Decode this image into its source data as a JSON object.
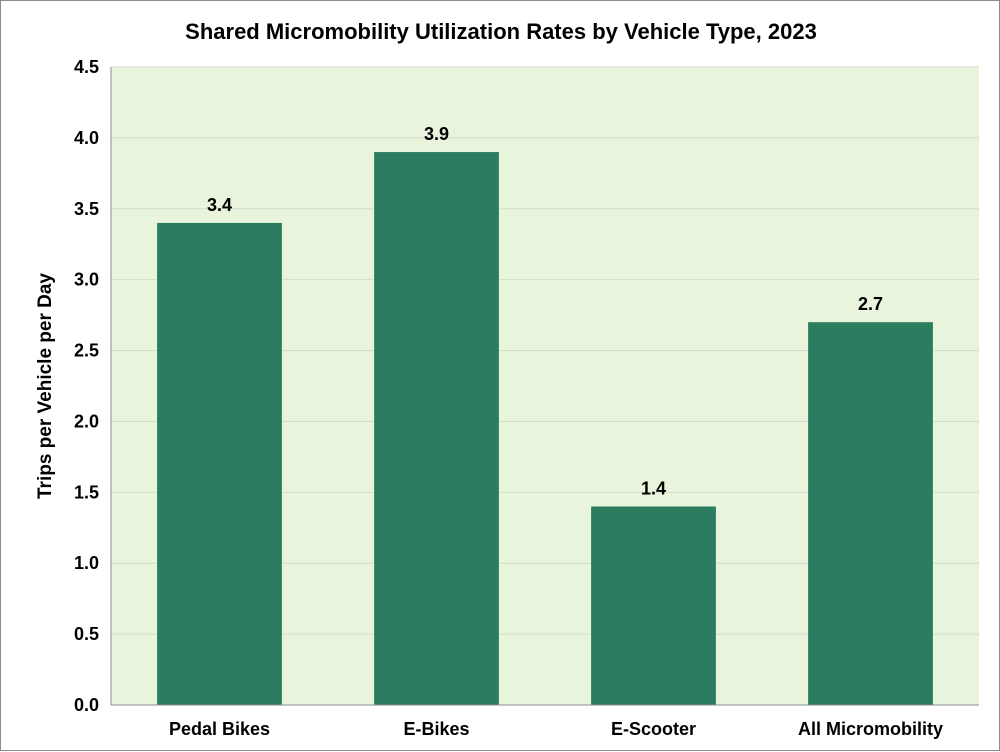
{
  "chart_data": {
    "type": "bar",
    "title": "Shared Micromobility Utilization Rates by Vehicle Type, 2023",
    "xlabel": "",
    "ylabel": "Trips per Vehicle per Day",
    "categories": [
      "Pedal Bikes",
      "E-Bikes",
      "E-Scooter",
      "All Micromobility"
    ],
    "values": [
      3.4,
      3.9,
      1.4,
      2.7
    ],
    "data_labels": [
      "3.4",
      "3.9",
      "1.4",
      "2.7"
    ],
    "ylim": [
      0,
      4.5
    ],
    "yticks": [
      0,
      0.5,
      1.0,
      1.5,
      2.0,
      2.5,
      3.0,
      3.5,
      4.0,
      4.5
    ],
    "ytick_labels": [
      "0.0",
      "0.5",
      "1.0",
      "1.5",
      "2.0",
      "2.5",
      "3.0",
      "3.5",
      "4.0",
      "4.5"
    ],
    "grid": true,
    "legend": "none",
    "colors": {
      "bar": "#2a7d5f",
      "plot_background": "#e8f5dc",
      "gridline": "#d4dccc",
      "axis": "#8c8c8c"
    }
  }
}
